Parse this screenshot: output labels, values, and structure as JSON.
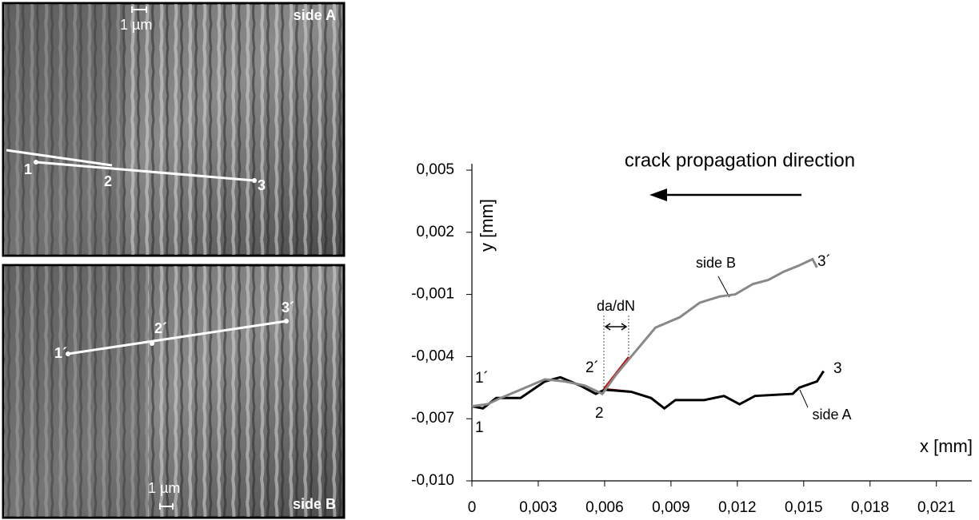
{
  "images": [
    {
      "label": "side A",
      "scale": "1 µm",
      "points": [
        "1",
        "2",
        "3"
      ]
    },
    {
      "label": "side B",
      "scale": "1 µm",
      "points": [
        "1´",
        "2´",
        "3´"
      ]
    }
  ],
  "chart_data": {
    "type": "line",
    "x_label": "x [mm]",
    "y_label": "y [mm]",
    "xlim": [
      0,
      0.0226
    ],
    "ylim": [
      -0.01,
      0.005
    ],
    "xticks": [
      0,
      {
        "value": 0.003,
        "label": "0,003"
      },
      {
        "value": 0.006,
        "label": "0,006"
      },
      {
        "value": 0.009,
        "label": "0,009"
      },
      {
        "value": 0.012,
        "label": "0,012"
      },
      {
        "value": 0.015,
        "label": "0,015"
      },
      {
        "value": 0.018,
        "label": "0,018"
      },
      {
        "value": 0.021,
        "label": "0,021"
      }
    ],
    "yticks": [
      {
        "value": 0.005,
        "label": "0,005"
      },
      {
        "value": 0.002,
        "label": "0,002"
      },
      {
        "value": -0.001,
        "label": "-0,001"
      },
      {
        "value": -0.004,
        "label": "-0,004"
      },
      {
        "value": -0.007,
        "label": "-0,007"
      },
      {
        "value": -0.01,
        "label": "-0,010"
      }
    ],
    "series": [
      {
        "name": "side A",
        "color": "#000000",
        "x": [
          0,
          0.0005,
          0.0011,
          0.0022,
          0.0033,
          0.004,
          0.0049,
          0.0056,
          0.006,
          0.0072,
          0.0081,
          0.0087,
          0.0092,
          0.0105,
          0.0114,
          0.0121,
          0.0128,
          0.0145,
          0.0148,
          0.0156,
          0.0159
        ],
        "values": [
          -0.0064,
          -0.0065,
          -0.006,
          -0.006,
          -0.0052,
          -0.005,
          -0.0054,
          -0.0058,
          -0.0056,
          -0.0057,
          -0.006,
          -0.0065,
          -0.0061,
          -0.0061,
          -0.0059,
          -0.0063,
          -0.0059,
          -0.0058,
          -0.0055,
          -0.0052,
          -0.0047
        ]
      },
      {
        "name": "side B",
        "color": "#888888",
        "x": [
          0,
          0.0007,
          0.0013,
          0.0022,
          0.0033,
          0.0042,
          0.0051,
          0.0059,
          0.0065,
          0.0072,
          0.0083,
          0.0094,
          0.0103,
          0.0112,
          0.0119,
          0.0127,
          0.0134,
          0.0141,
          0.0148,
          0.0154,
          0.0156
        ],
        "values": [
          -0.0064,
          -0.0063,
          -0.006,
          -0.0056,
          -0.0051,
          -0.0052,
          -0.0054,
          -0.0058,
          -0.0049,
          -0.004,
          -0.0026,
          -0.0021,
          -0.0014,
          -0.0011,
          -0.001,
          -0.0005,
          -0.0003,
          0.0001,
          0.0004,
          0.0007,
          0.0003
        ]
      }
    ],
    "annotations": [
      "crack propagation direction",
      "3´",
      "3",
      "1´",
      "1",
      "2´",
      "2",
      "da/dN"
    ]
  }
}
